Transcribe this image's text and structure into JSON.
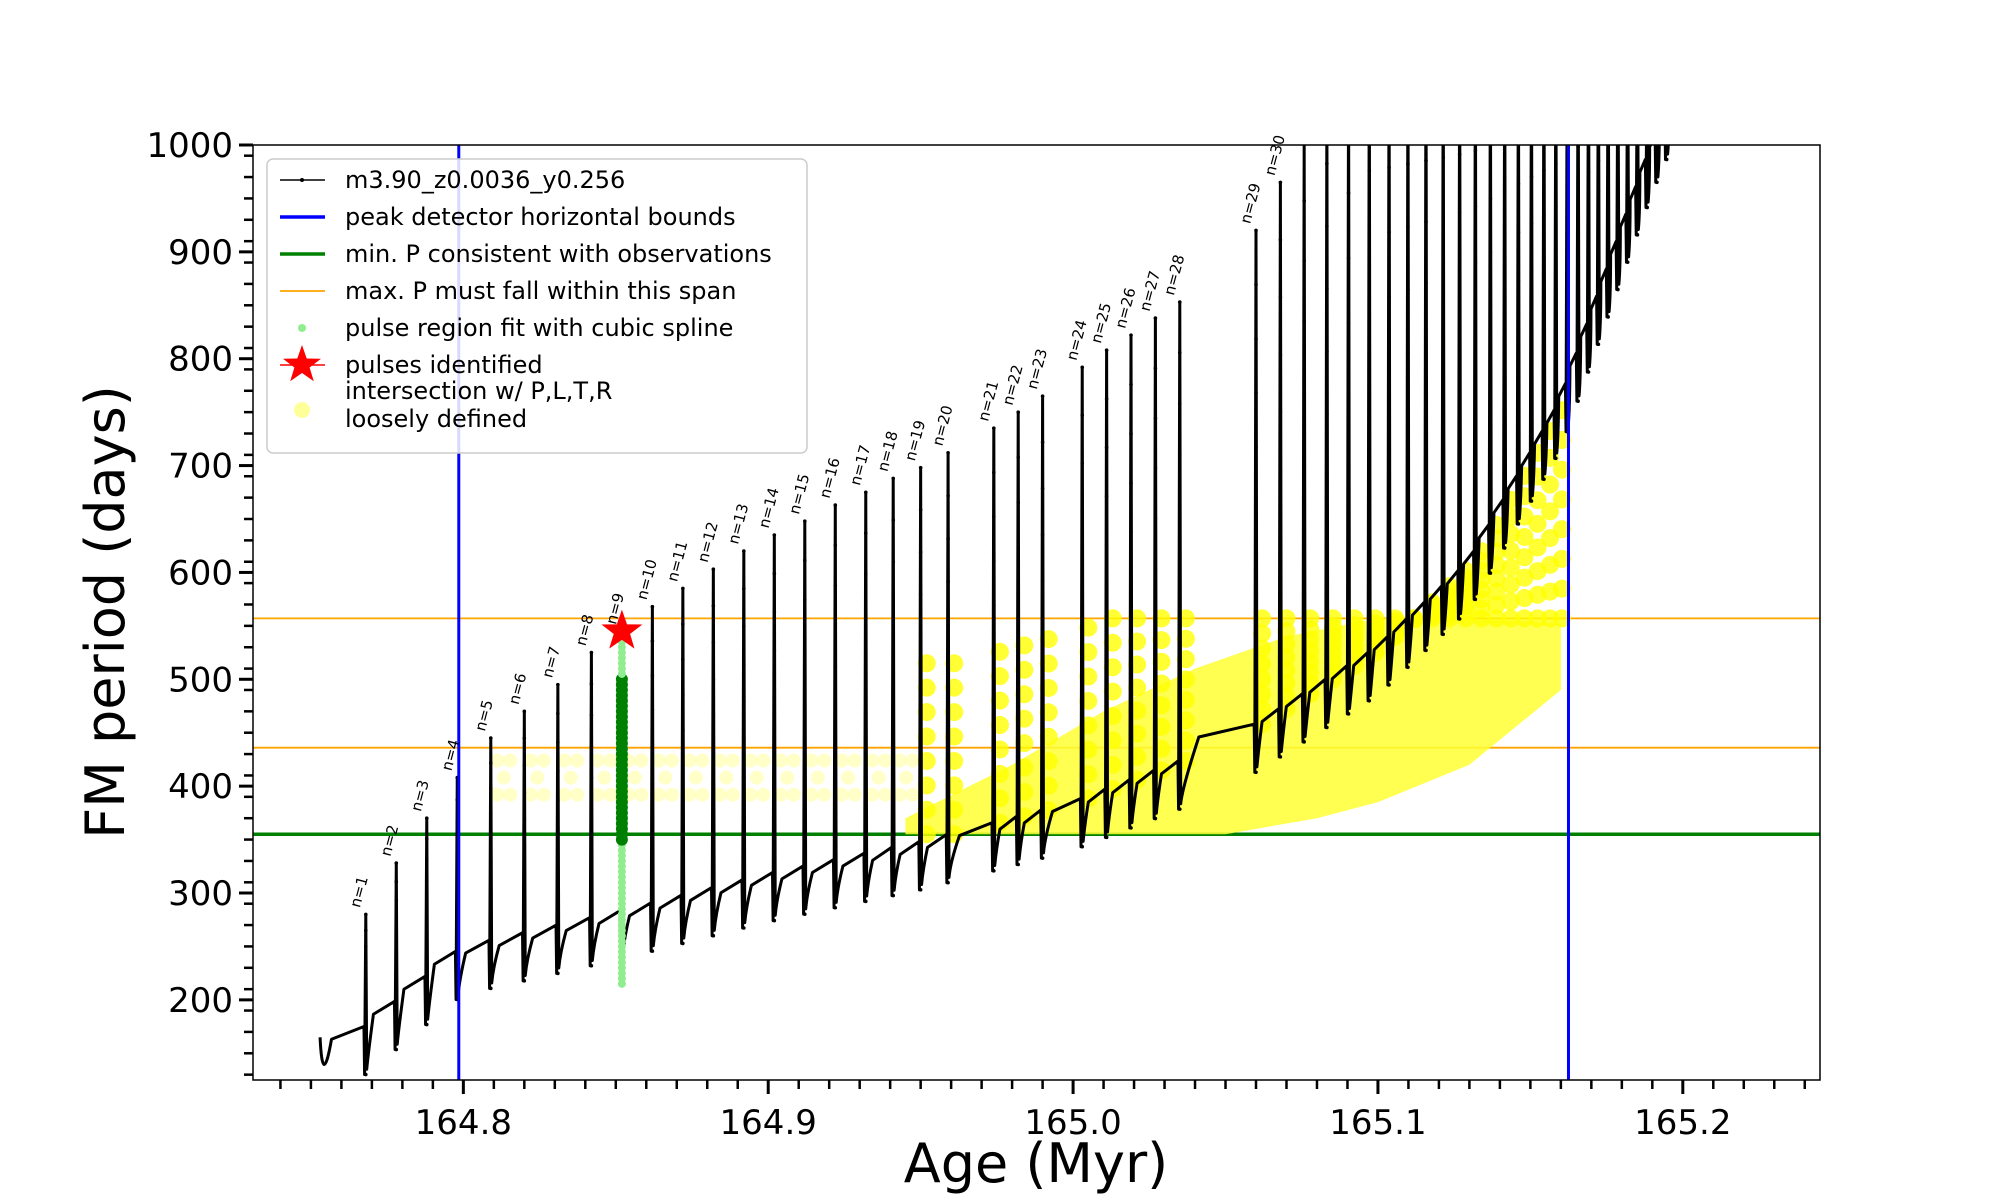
{
  "chart_data": {
    "type": "line",
    "title": "",
    "xlabel": "Age (Myr)",
    "ylabel": "FM period (days)",
    "xlim": [
      164.731,
      165.245
    ],
    "ylim": [
      125,
      1000
    ],
    "x_ticks": [
      164.8,
      164.9,
      165.0,
      165.1,
      165.2
    ],
    "x_tick_labels": [
      "164.8",
      "164.9",
      "165.0",
      "165.1",
      "165.2"
    ],
    "y_ticks": [
      200,
      300,
      400,
      500,
      600,
      700,
      800,
      900,
      1000
    ],
    "y_tick_labels": [
      "200",
      "300",
      "400",
      "500",
      "600",
      "700",
      "800",
      "900",
      "1000"
    ],
    "legend_position": "upper-left",
    "legend": [
      {
        "label": "m3.90_z0.0036_y0.256",
        "style": "line-dots",
        "color": "#000000"
      },
      {
        "label": "peak detector horizontal bounds",
        "style": "line",
        "color": "#0000ff"
      },
      {
        "label": "min. P consistent with observations",
        "style": "line",
        "color": "#008000"
      },
      {
        "label": "max. P must fall within this span",
        "style": "line",
        "color": "#ffa500"
      },
      {
        "label": "pulse region fit with cubic spline",
        "style": "dot",
        "color": "#90ee90"
      },
      {
        "label": "pulses identified",
        "style": "star",
        "color": "#ff0000"
      },
      {
        "label": [
          "intersection w/ P,L,T,R",
          "loosely defined"
        ],
        "style": "dot",
        "color": "#ffff99"
      }
    ],
    "vertical_lines": [
      {
        "x": 164.7985,
        "color": "#0000ff",
        "meaning": "peak detector horizontal bounds"
      },
      {
        "x": 165.1625,
        "color": "#0000ff",
        "meaning": "peak detector horizontal bounds"
      }
    ],
    "horizontal_lines": [
      {
        "y": 355,
        "color": "#008000",
        "meaning": "min. P consistent with observations"
      },
      {
        "y": 436,
        "color": "#ffa500",
        "meaning": "max. P must fall within this span"
      },
      {
        "y": 557,
        "color": "#ffa500",
        "meaning": "max. P must fall within this span"
      }
    ],
    "pulses": [
      {
        "n": 1,
        "age": 164.768,
        "peak": 280
      },
      {
        "n": 2,
        "age": 164.778,
        "peak": 328
      },
      {
        "n": 3,
        "age": 164.788,
        "peak": 370
      },
      {
        "n": 4,
        "age": 164.798,
        "peak": 408
      },
      {
        "n": 5,
        "age": 164.809,
        "peak": 445
      },
      {
        "n": 6,
        "age": 164.82,
        "peak": 470
      },
      {
        "n": 7,
        "age": 164.831,
        "peak": 495
      },
      {
        "n": 8,
        "age": 164.842,
        "peak": 525
      },
      {
        "n": 9,
        "age": 164.852,
        "peak": 545
      },
      {
        "n": 10,
        "age": 164.862,
        "peak": 568
      },
      {
        "n": 11,
        "age": 164.872,
        "peak": 585
      },
      {
        "n": 12,
        "age": 164.882,
        "peak": 603
      },
      {
        "n": 13,
        "age": 164.892,
        "peak": 620
      },
      {
        "n": 14,
        "age": 164.902,
        "peak": 635
      },
      {
        "n": 15,
        "age": 164.912,
        "peak": 648
      },
      {
        "n": 16,
        "age": 164.922,
        "peak": 663
      },
      {
        "n": 17,
        "age": 164.932,
        "peak": 675
      },
      {
        "n": 18,
        "age": 164.941,
        "peak": 688
      },
      {
        "n": 19,
        "age": 164.95,
        "peak": 698
      },
      {
        "n": 20,
        "age": 164.959,
        "peak": 712
      },
      {
        "n": 21,
        "age": 164.974,
        "peak": 735
      },
      {
        "n": 22,
        "age": 164.982,
        "peak": 750
      },
      {
        "n": 23,
        "age": 164.99,
        "peak": 765
      },
      {
        "n": 24,
        "age": 165.003,
        "peak": 792
      },
      {
        "n": 25,
        "age": 165.011,
        "peak": 808
      },
      {
        "n": 26,
        "age": 165.019,
        "peak": 822
      },
      {
        "n": 27,
        "age": 165.027,
        "peak": 838
      },
      {
        "n": 28,
        "age": 165.035,
        "peak": 853
      },
      {
        "n": 29,
        "age": 165.06,
        "peak": 920
      },
      {
        "n": 30,
        "age": 165.068,
        "peak": 965
      }
    ],
    "pulses_identified": [
      {
        "age": 164.852,
        "period": 545
      }
    ],
    "spline_fit_region": {
      "age": 164.852,
      "period_range": [
        215,
        545
      ]
    },
    "intersection_region": {
      "age_range": [
        164.8,
        165.16
      ],
      "period_range": [
        355,
        557
      ]
    }
  }
}
